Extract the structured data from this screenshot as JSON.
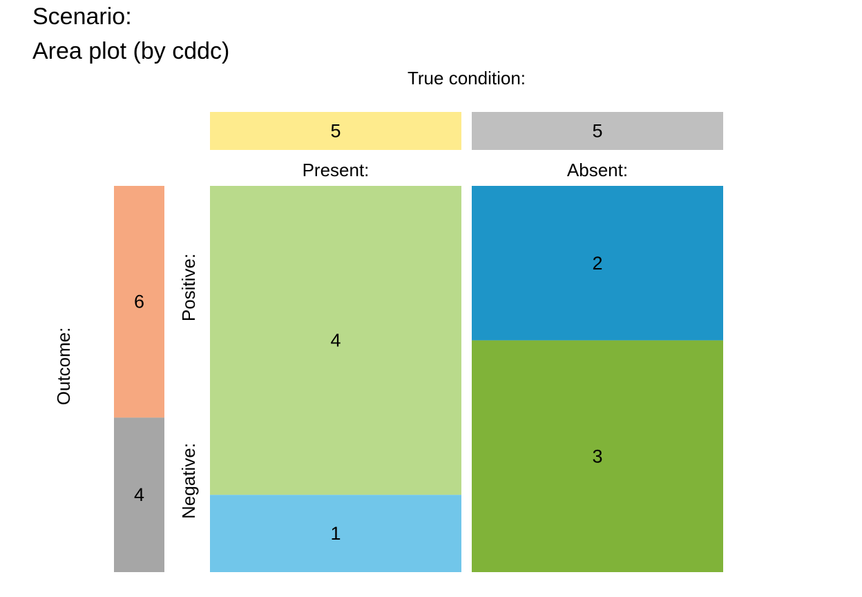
{
  "title": {
    "line1": "Scenario:",
    "line2": "Area plot (by cddc)"
  },
  "chart_data": {
    "type": "area",
    "true_condition_label": "True condition:",
    "outcome_label": "Outcome:",
    "columns": [
      {
        "name": "Present:",
        "total": 5,
        "color": "#FEEB8D"
      },
      {
        "name": "Absent:",
        "total": 5,
        "color": "#BFBFBF"
      }
    ],
    "rows": [
      {
        "name": "Positive:",
        "total": 6,
        "color": "#F6A880"
      },
      {
        "name": "Negative:",
        "total": 4,
        "color": "#A6A6A6"
      }
    ],
    "cells": [
      {
        "id": "hi",
        "column": 0,
        "value": 4,
        "color": "#B9DA8B"
      },
      {
        "id": "mi",
        "column": 0,
        "value": 1,
        "color": "#71C6EA"
      },
      {
        "id": "fa",
        "column": 1,
        "value": 2,
        "color": "#1E95C8"
      },
      {
        "id": "cr",
        "column": 1,
        "value": 3,
        "color": "#80B339"
      }
    ]
  }
}
